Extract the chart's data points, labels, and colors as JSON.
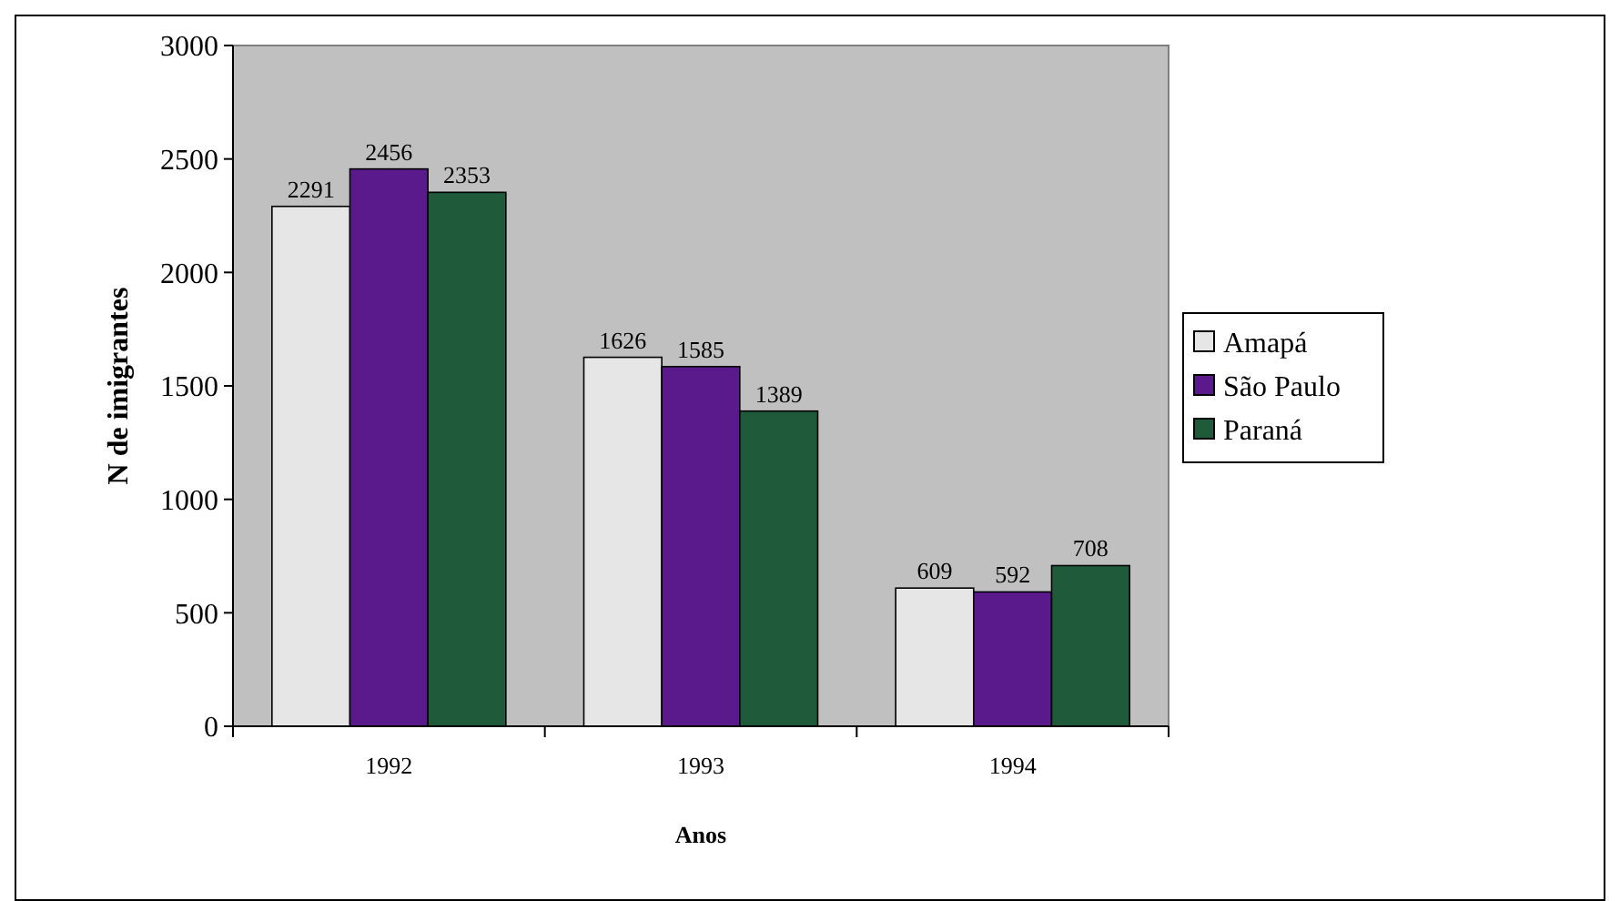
{
  "chart_data": {
    "type": "bar",
    "xlabel": "Anos",
    "ylabel": "N de imigrantes",
    "categories": [
      "1992",
      "1993",
      "1994"
    ],
    "series": [
      {
        "name": "Amapá",
        "color": "#e6e6e6",
        "values": [
          2291,
          1626,
          609
        ]
      },
      {
        "name": "São Paulo",
        "color": "#5b1a8c",
        "values": [
          2456,
          1585,
          592
        ]
      },
      {
        "name": "Paraná",
        "color": "#1f5a3a",
        "values": [
          2353,
          1389,
          708
        ]
      }
    ],
    "ylim": [
      0,
      3000
    ],
    "yticks": [
      0,
      500,
      1000,
      1500,
      2000,
      2500,
      3000
    ],
    "data_labels": true,
    "legend": "right",
    "grid": false
  }
}
